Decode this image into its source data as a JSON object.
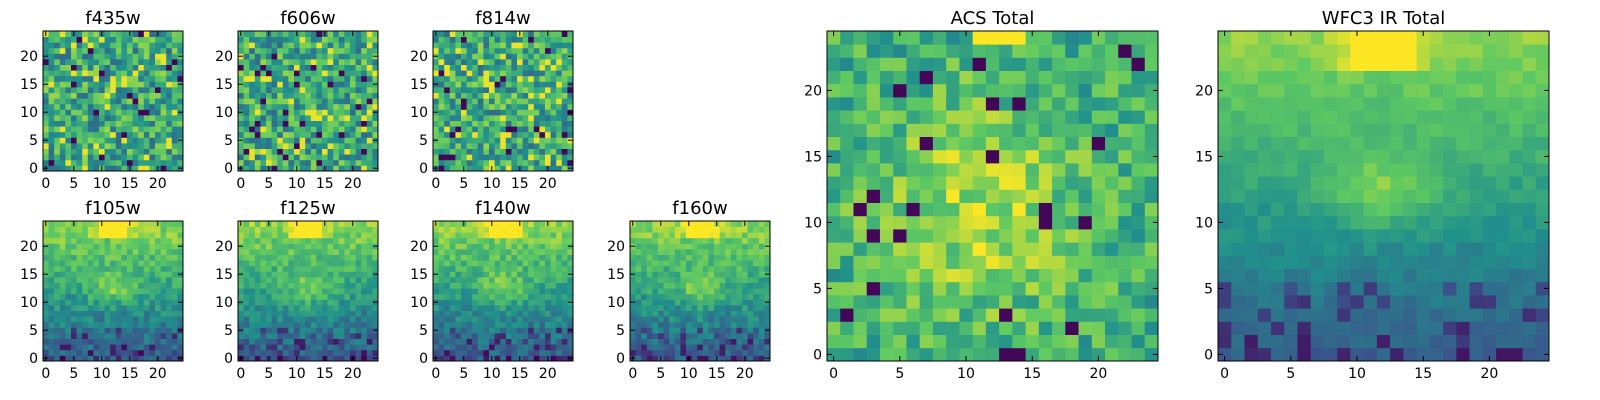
{
  "figure": {
    "colormap": [
      "#440154",
      "#3b528b",
      "#21918c",
      "#5ec962",
      "#fde725"
    ]
  },
  "chart_data": [
    {
      "type": "heatmap",
      "title": "f435w",
      "grid": false,
      "xlim": [
        -0.5,
        24.5
      ],
      "ylim": [
        -0.5,
        24.5
      ],
      "x_ticks": [
        "0",
        "5",
        "10",
        "15",
        "20"
      ],
      "y_ticks": [
        "0",
        "5",
        "10",
        "15",
        "20"
      ],
      "pattern": "noise",
      "seed": 11,
      "shape": [
        25,
        25
      ]
    },
    {
      "type": "heatmap",
      "title": "f606w",
      "grid": false,
      "xlim": [
        -0.5,
        24.5
      ],
      "ylim": [
        -0.5,
        24.5
      ],
      "x_ticks": [
        "0",
        "5",
        "10",
        "15",
        "20"
      ],
      "y_ticks": [
        "0",
        "5",
        "10",
        "15",
        "20"
      ],
      "pattern": "noise",
      "seed": 23,
      "shape": [
        25,
        25
      ]
    },
    {
      "type": "heatmap",
      "title": "f814w",
      "grid": false,
      "xlim": [
        -0.5,
        24.5
      ],
      "ylim": [
        -0.5,
        24.5
      ],
      "x_ticks": [
        "0",
        "5",
        "10",
        "15",
        "20"
      ],
      "y_ticks": [
        "0",
        "5",
        "10",
        "15",
        "20"
      ],
      "pattern": "noise",
      "seed": 37,
      "shape": [
        25,
        25
      ]
    },
    {
      "type": "heatmap",
      "title": "f105w",
      "grid": false,
      "xlim": [
        -0.5,
        24.5
      ],
      "ylim": [
        -0.5,
        24.5
      ],
      "x_ticks": [
        "0",
        "5",
        "10",
        "15",
        "20"
      ],
      "y_ticks": [
        "0",
        "5",
        "10",
        "15",
        "20"
      ],
      "pattern": "ir",
      "seed": 41,
      "shape": [
        25,
        25
      ]
    },
    {
      "type": "heatmap",
      "title": "f125w",
      "grid": false,
      "xlim": [
        -0.5,
        24.5
      ],
      "ylim": [
        -0.5,
        24.5
      ],
      "x_ticks": [
        "0",
        "5",
        "10",
        "15",
        "20"
      ],
      "y_ticks": [
        "0",
        "5",
        "10",
        "15",
        "20"
      ],
      "pattern": "ir",
      "seed": 53,
      "shape": [
        25,
        25
      ]
    },
    {
      "type": "heatmap",
      "title": "f140w",
      "grid": false,
      "xlim": [
        -0.5,
        24.5
      ],
      "ylim": [
        -0.5,
        24.5
      ],
      "x_ticks": [
        "0",
        "5",
        "10",
        "15",
        "20"
      ],
      "y_ticks": [
        "0",
        "5",
        "10",
        "15",
        "20"
      ],
      "pattern": "ir",
      "seed": 67,
      "shape": [
        25,
        25
      ]
    },
    {
      "type": "heatmap",
      "title": "f160w",
      "grid": false,
      "xlim": [
        -0.5,
        24.5
      ],
      "ylim": [
        -0.5,
        24.5
      ],
      "x_ticks": [
        "0",
        "5",
        "10",
        "15",
        "20"
      ],
      "y_ticks": [
        "0",
        "5",
        "10",
        "15",
        "20"
      ],
      "pattern": "ir",
      "seed": 79,
      "shape": [
        25,
        25
      ]
    },
    {
      "type": "heatmap",
      "title": "ACS Total",
      "grid": false,
      "xlim": [
        -0.5,
        24.5
      ],
      "ylim": [
        -0.5,
        24.5
      ],
      "x_ticks": [
        "0",
        "5",
        "10",
        "15",
        "20"
      ],
      "y_ticks": [
        "0",
        "5",
        "10",
        "15",
        "20"
      ],
      "pattern": "acs",
      "seed": 97,
      "shape": [
        25,
        25
      ]
    },
    {
      "type": "heatmap",
      "title": "WFC3 IR Total",
      "grid": false,
      "xlim": [
        -0.5,
        24.5
      ],
      "ylim": [
        -0.5,
        24.5
      ],
      "x_ticks": [
        "0",
        "5",
        "10",
        "15",
        "20"
      ],
      "y_ticks": [
        "0",
        "5",
        "10",
        "15",
        "20"
      ],
      "pattern": "ir_smooth",
      "seed": 101,
      "shape": [
        25,
        25
      ]
    }
  ]
}
